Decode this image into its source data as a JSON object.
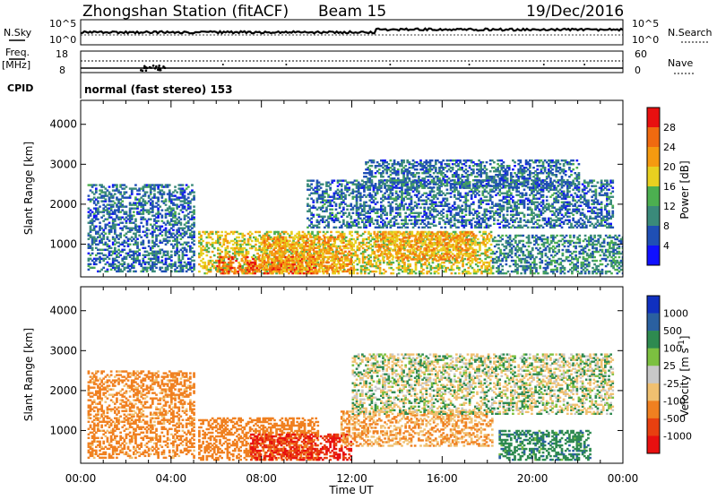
{
  "header": {
    "station": "Zhongshan Station (fitACF)",
    "beam": "Beam 15",
    "date": "19/Dec/2016",
    "program": "normal (fast stereo) 153"
  },
  "labels": {
    "nsky": "N.Sky",
    "nsearch": "N.Search",
    "freq": "Freq.",
    "mhz": "[MHz]",
    "nave": "Nave",
    "cpid": "CPID",
    "xlabel": "Time UT"
  },
  "noise_axis": {
    "left_ticks": [
      "10^5",
      "10^0"
    ],
    "right_ticks": [
      "10^5",
      "10^0"
    ]
  },
  "freq_axis": {
    "left_ticks": [
      "18",
      "8"
    ],
    "right_ticks": [
      "60",
      "0"
    ]
  },
  "time_ticks": [
    "00:00",
    "04:00",
    "08:00",
    "12:00",
    "16:00",
    "20:00",
    "00:00"
  ],
  "range_ticks": [
    "1000",
    "2000",
    "3000",
    "4000"
  ],
  "power_scale": {
    "label": "Power [dB]",
    "ticks": [
      "4",
      "8",
      "12",
      "16",
      "20",
      "24",
      "28"
    ],
    "colors": [
      "#1010ff",
      "#1f4fb5",
      "#3a8a7a",
      "#4caf50",
      "#e8d020",
      "#f59a10",
      "#f06a10",
      "#e81010"
    ]
  },
  "velocity_scale": {
    "label": "Velocity [m s",
    "label_sup": "-1",
    "label_end": "]",
    "ticks": [
      "1000",
      "500",
      "100",
      "25",
      "-25",
      "-100",
      "-500",
      "-1000"
    ],
    "colors": [
      "#1030c0",
      "#2a60a0",
      "#2e8a50",
      "#7cc040",
      "#c8c8c8",
      "#f0c070",
      "#f08020",
      "#e84010",
      "#e81010"
    ]
  },
  "chart_data": [
    {
      "type": "heatmap",
      "title": "Power",
      "xlabel": "Time UT",
      "ylabel": "Slant Range [km]",
      "x_range": [
        "00:00",
        "24:00"
      ],
      "ylim": [
        180,
        4600
      ],
      "colorbar": {
        "label": "Power [dB]",
        "range": [
          0,
          32
        ]
      },
      "regions": [
        {
          "t0": 5.2,
          "t1": 18.2,
          "r0": 250,
          "r1": 1300,
          "value": 18
        },
        {
          "t0": 6.0,
          "t1": 10.5,
          "r0": 250,
          "r1": 700,
          "value": 26
        },
        {
          "t0": 8.0,
          "t1": 12.0,
          "r0": 300,
          "r1": 1200,
          "value": 22
        },
        {
          "t0": 13.0,
          "t1": 17.5,
          "r0": 600,
          "r1": 1300,
          "value": 22
        },
        {
          "t0": 10.0,
          "t1": 23.5,
          "r0": 1400,
          "r1": 2600,
          "value": 8
        },
        {
          "t0": 12.5,
          "t1": 22.0,
          "r0": 2400,
          "r1": 3100,
          "value": 8
        },
        {
          "t0": 0.3,
          "t1": 5.0,
          "r0": 300,
          "r1": 2500,
          "value": 8
        },
        {
          "t0": 18.2,
          "t1": 24.0,
          "r0": 250,
          "r1": 1200,
          "value": 10
        }
      ]
    },
    {
      "type": "heatmap",
      "title": "Velocity",
      "xlabel": "Time UT",
      "ylabel": "Slant Range [km]",
      "x_range": [
        "00:00",
        "24:00"
      ],
      "ylim": [
        180,
        4600
      ],
      "colorbar": {
        "label": "Velocity [m s-1]",
        "range": [
          -1000,
          1000
        ]
      },
      "regions": [
        {
          "t0": 5.2,
          "t1": 10.5,
          "r0": 250,
          "r1": 1300,
          "value": -500
        },
        {
          "t0": 7.5,
          "t1": 12.0,
          "r0": 250,
          "r1": 900,
          "value": -1000
        },
        {
          "t0": 11.5,
          "t1": 18.2,
          "r0": 600,
          "r1": 1500,
          "value": -300
        },
        {
          "t0": 12.0,
          "t1": 23.5,
          "r0": 1400,
          "r1": 2900,
          "value": 0
        },
        {
          "t0": 18.5,
          "t1": 22.5,
          "r0": 250,
          "r1": 1000,
          "value": 200
        },
        {
          "t0": 0.3,
          "t1": 5.0,
          "r0": 300,
          "r1": 2500,
          "value": -400
        }
      ]
    }
  ]
}
